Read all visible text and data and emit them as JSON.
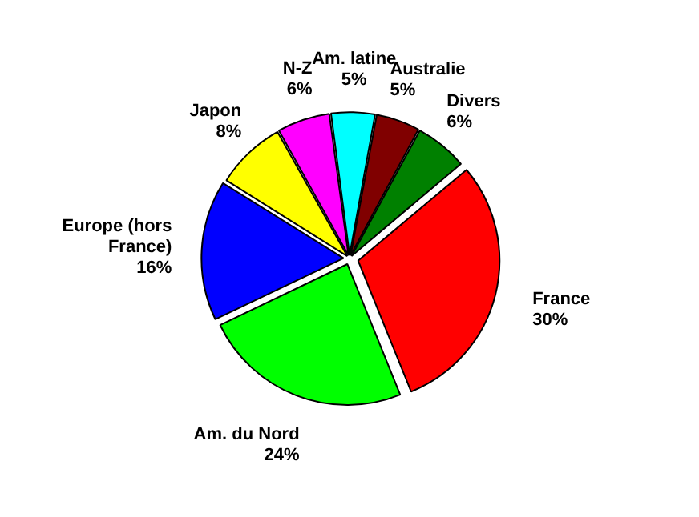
{
  "chart_data": {
    "type": "pie",
    "categories": [
      "France",
      "Am. du Nord",
      "Europe (hors France)",
      "Japon",
      "N-Z",
      "Am. latine",
      "Australie",
      "Divers"
    ],
    "values": [
      30,
      24,
      16,
      8,
      6,
      5,
      5,
      6
    ],
    "colors": [
      "#ff0000",
      "#00ff00",
      "#0000ff",
      "#ffff00",
      "#ff00ff",
      "#00ffff",
      "#800000",
      "#008000"
    ],
    "value_labels": [
      "30%",
      "24%",
      "16%",
      "8%",
      "6%",
      "5%",
      "5%",
      "6%"
    ],
    "legend": false
  }
}
